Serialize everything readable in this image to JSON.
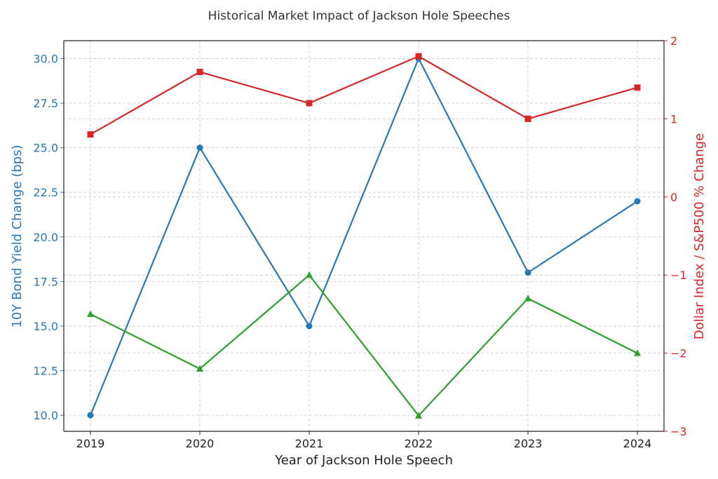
{
  "chart_data": {
    "type": "line",
    "title": "Historical Market Impact of Jackson Hole Speeches",
    "xlabel": "Year of Jackson Hole Speech",
    "ylabel_left": "10Y Bond Yield Change (bps)",
    "ylabel_right": "Dollar Index / S&P500 % Change",
    "categories": [
      "2019",
      "2020",
      "2021",
      "2022",
      "2023",
      "2024"
    ],
    "ylim_left": [
      9.1,
      31.0
    ],
    "ylim_right": [
      -3,
      2
    ],
    "yticks_left": [
      "10.0",
      "12.5",
      "15.0",
      "17.5",
      "20.0",
      "22.5",
      "25.0",
      "27.5",
      "30.0"
    ],
    "yticks_right": [
      "−3",
      "−2",
      "−1",
      "0",
      "1",
      "2"
    ],
    "grid": true,
    "colors": {
      "left_axis": "#2878b5",
      "right_axis": "#d62728",
      "text": "#222222"
    },
    "series": [
      {
        "axis": "left",
        "marker": "circle",
        "color": "#2878b5",
        "values": [
          10,
          25,
          15,
          30,
          18,
          22
        ]
      },
      {
        "axis": "right",
        "marker": "square",
        "color": "#d62728",
        "values": [
          0.8,
          1.6,
          1.2,
          1.8,
          1.0,
          1.4
        ]
      },
      {
        "axis": "right",
        "marker": "triangle",
        "color": "#2ca02c",
        "values": [
          -1.5,
          -2.2,
          -1.0,
          -2.8,
          -1.3,
          -2.0
        ]
      }
    ]
  }
}
